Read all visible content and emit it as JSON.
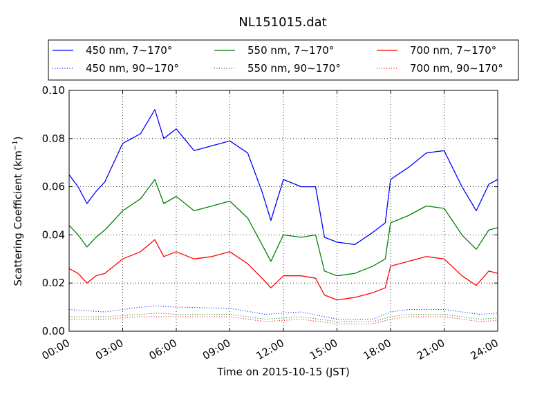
{
  "chart_data": {
    "type": "line",
    "title": "NL151015.dat",
    "xlabel": "Time on 2015-10-15 (JST)",
    "ylabel": "Scattering Coefficient (km",
    "ylabel_sup": "−1",
    "ylabel_tail": ")",
    "xlim": [
      0,
      24
    ],
    "ylim": [
      0.0,
      0.1
    ],
    "x_ticks": [
      {
        "value": 0,
        "label": "00:00"
      },
      {
        "value": 3,
        "label": "03:00"
      },
      {
        "value": 6,
        "label": "06:00"
      },
      {
        "value": 9,
        "label": "09:00"
      },
      {
        "value": 12,
        "label": "12:00"
      },
      {
        "value": 15,
        "label": "15:00"
      },
      {
        "value": 18,
        "label": "18:00"
      },
      {
        "value": 21,
        "label": "21:00"
      },
      {
        "value": 24,
        "label": "24:00"
      }
    ],
    "y_ticks": [
      {
        "value": 0.0,
        "label": "0.00"
      },
      {
        "value": 0.02,
        "label": "0.02"
      },
      {
        "value": 0.04,
        "label": "0.04"
      },
      {
        "value": 0.06,
        "label": "0.06"
      },
      {
        "value": 0.08,
        "label": "0.08"
      },
      {
        "value": 0.1,
        "label": "0.10"
      }
    ],
    "grid": true,
    "legend_position": "top, above plot, 3 columns",
    "series": [
      {
        "name": "450 nm, 7∼170°",
        "color": "#0000ff",
        "style": "solid",
        "x": [
          0,
          0.5,
          1,
          1.5,
          2,
          3,
          4,
          4.8,
          5.3,
          6,
          7,
          8,
          9,
          10,
          10.8,
          11.3,
          12,
          13,
          13.8,
          14.3,
          15,
          16,
          17,
          17.7,
          18,
          19,
          20,
          21,
          22,
          22.8,
          23.5,
          24
        ],
        "y": [
          0.065,
          0.06,
          0.053,
          0.058,
          0.062,
          0.078,
          0.082,
          0.092,
          0.08,
          0.084,
          0.075,
          0.077,
          0.079,
          0.074,
          0.058,
          0.046,
          0.063,
          0.06,
          0.06,
          0.039,
          0.037,
          0.036,
          0.041,
          0.045,
          0.063,
          0.068,
          0.074,
          0.075,
          0.06,
          0.05,
          0.061,
          0.063
        ]
      },
      {
        "name": "450 nm, 90∼170°",
        "color": "#0000ff",
        "style": "dotted",
        "x": [
          0,
          2,
          4,
          5,
          6,
          9,
          11,
          13,
          15,
          17,
          18,
          19,
          21,
          23,
          24
        ],
        "y": [
          0.009,
          0.008,
          0.01,
          0.0105,
          0.01,
          0.0095,
          0.007,
          0.008,
          0.005,
          0.005,
          0.008,
          0.009,
          0.009,
          0.007,
          0.0075
        ]
      },
      {
        "name": "550 nm, 7∼170°",
        "color": "#008000",
        "style": "solid",
        "x": [
          0,
          0.5,
          1,
          1.5,
          2,
          3,
          4,
          4.8,
          5.3,
          6,
          7,
          8,
          9,
          10,
          10.8,
          11.3,
          12,
          13,
          13.8,
          14.3,
          15,
          16,
          17,
          17.7,
          18,
          19,
          20,
          21,
          22,
          22.8,
          23.5,
          24
        ],
        "y": [
          0.044,
          0.04,
          0.035,
          0.039,
          0.042,
          0.05,
          0.055,
          0.063,
          0.053,
          0.056,
          0.05,
          0.052,
          0.054,
          0.047,
          0.036,
          0.029,
          0.04,
          0.039,
          0.04,
          0.025,
          0.023,
          0.024,
          0.027,
          0.03,
          0.045,
          0.048,
          0.052,
          0.051,
          0.04,
          0.034,
          0.042,
          0.043
        ]
      },
      {
        "name": "550 nm, 90∼170°",
        "color": "#008000",
        "style": "dotted",
        "x": [
          0,
          2,
          4,
          5,
          6,
          9,
          11,
          13,
          15,
          17,
          18,
          19,
          21,
          23,
          24
        ],
        "y": [
          0.006,
          0.006,
          0.007,
          0.0075,
          0.007,
          0.007,
          0.005,
          0.006,
          0.004,
          0.004,
          0.006,
          0.007,
          0.007,
          0.005,
          0.0055
        ]
      },
      {
        "name": "700 nm, 7∼170°",
        "color": "#ff0000",
        "style": "solid",
        "x": [
          0,
          0.5,
          1,
          1.5,
          2,
          3,
          4,
          4.8,
          5.3,
          6,
          7,
          8,
          9,
          10,
          10.8,
          11.3,
          12,
          13,
          13.8,
          14.3,
          15,
          16,
          17,
          17.7,
          18,
          19,
          20,
          21,
          22,
          22.8,
          23.5,
          24
        ],
        "y": [
          0.026,
          0.024,
          0.02,
          0.023,
          0.024,
          0.03,
          0.033,
          0.038,
          0.031,
          0.033,
          0.03,
          0.031,
          0.033,
          0.028,
          0.022,
          0.018,
          0.023,
          0.023,
          0.022,
          0.015,
          0.013,
          0.014,
          0.016,
          0.018,
          0.027,
          0.029,
          0.031,
          0.03,
          0.023,
          0.019,
          0.025,
          0.024
        ]
      },
      {
        "name": "700 nm, 90∼170°",
        "color": "#ff0000",
        "style": "dotted",
        "x": [
          0,
          2,
          4,
          5,
          6,
          9,
          11,
          13,
          15,
          17,
          18,
          19,
          21,
          23,
          24
        ],
        "y": [
          0.005,
          0.005,
          0.006,
          0.006,
          0.006,
          0.006,
          0.004,
          0.005,
          0.003,
          0.003,
          0.005,
          0.006,
          0.006,
          0.004,
          0.0045
        ]
      }
    ]
  }
}
